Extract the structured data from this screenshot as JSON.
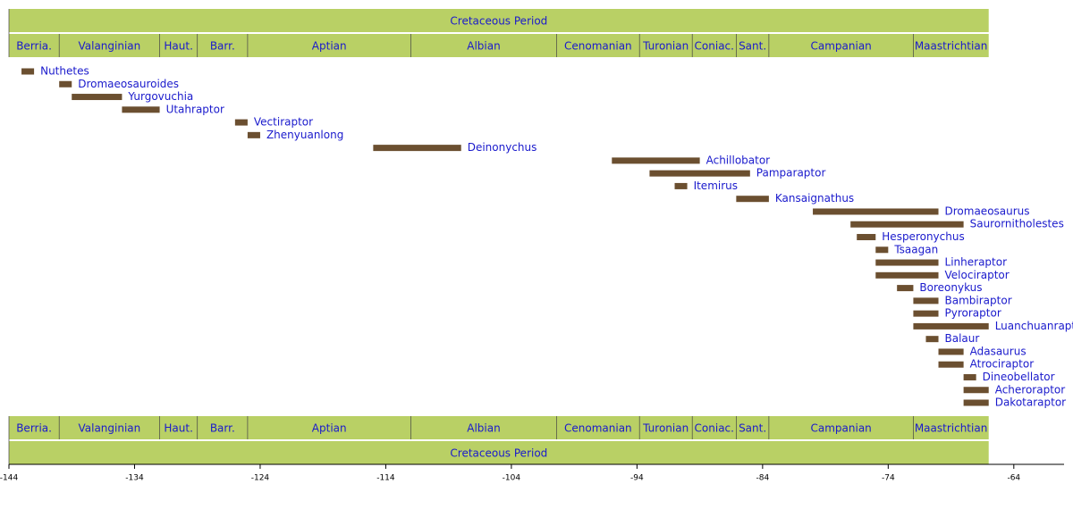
{
  "chart_data": {
    "type": "timeline",
    "xlim": [
      -144,
      -60
    ],
    "xticks": [
      -144,
      -134,
      -124,
      -114,
      -104,
      -94,
      -84,
      -74,
      -64
    ],
    "band_color": "#b9d065",
    "band_text_color": "#1a1acc",
    "bar_color": "#6b4f30",
    "label_color": "#1a1acc",
    "periods": [
      {
        "name": "Cretaceous Period",
        "start": -144,
        "end": -66
      }
    ],
    "stages": [
      {
        "name": "Berria.",
        "start": -144,
        "end": -140
      },
      {
        "name": "Valanginian",
        "start": -140,
        "end": -132
      },
      {
        "name": "Haut.",
        "start": -132,
        "end": -129
      },
      {
        "name": "Barr.",
        "start": -129,
        "end": -125
      },
      {
        "name": "Aptian",
        "start": -125,
        "end": -112
      },
      {
        "name": "Albian",
        "start": -112,
        "end": -100.4
      },
      {
        "name": "Cenomanian",
        "start": -100.4,
        "end": -93.8
      },
      {
        "name": "Turonian",
        "start": -93.8,
        "end": -89.6
      },
      {
        "name": "Coniac.",
        "start": -89.6,
        "end": -86.1
      },
      {
        "name": "Sant.",
        "start": -86.1,
        "end": -83.5
      },
      {
        "name": "Campanian",
        "start": -83.5,
        "end": -72
      },
      {
        "name": "Maastrichtian",
        "start": -72,
        "end": -66
      }
    ],
    "items": [
      {
        "name": "Nuthetes",
        "start": -143,
        "end": -142
      },
      {
        "name": "Dromaeosauroides",
        "start": -140,
        "end": -139
      },
      {
        "name": "Yurgovuchia",
        "start": -139,
        "end": -135
      },
      {
        "name": "Utahraptor",
        "start": -135,
        "end": -132
      },
      {
        "name": "Vectiraptor",
        "start": -126,
        "end": -125
      },
      {
        "name": "Zhenyuanlong",
        "start": -125,
        "end": -124
      },
      {
        "name": "Deinonychus",
        "start": -115,
        "end": -108
      },
      {
        "name": "Achillobator",
        "start": -96,
        "end": -89
      },
      {
        "name": "Pamparaptor",
        "start": -93,
        "end": -85
      },
      {
        "name": "Itemirus",
        "start": -91,
        "end": -90
      },
      {
        "name": "Kansaignathus",
        "start": -86.1,
        "end": -83.5
      },
      {
        "name": "Dromaeosaurus",
        "start": -80,
        "end": -70
      },
      {
        "name": "Saurornitholestes",
        "start": -77,
        "end": -68
      },
      {
        "name": "Hesperonychus",
        "start": -76.5,
        "end": -75
      },
      {
        "name": "Tsaagan",
        "start": -75,
        "end": -74
      },
      {
        "name": "Linheraptor",
        "start": -75,
        "end": -70
      },
      {
        "name": "Velociraptor",
        "start": -75,
        "end": -70
      },
      {
        "name": "Boreonykus",
        "start": -73.3,
        "end": -72
      },
      {
        "name": "Bambiraptor",
        "start": -72,
        "end": -70
      },
      {
        "name": "Pyroraptor",
        "start": -72,
        "end": -70
      },
      {
        "name": "Luanchuanraptor",
        "start": -72,
        "end": -66
      },
      {
        "name": "Balaur",
        "start": -71,
        "end": -70
      },
      {
        "name": "Adasaurus",
        "start": -70,
        "end": -68
      },
      {
        "name": "Atrociraptor",
        "start": -70,
        "end": -68
      },
      {
        "name": "Dineobellator",
        "start": -68,
        "end": -67
      },
      {
        "name": "Acheroraptor",
        "start": -68,
        "end": -66
      },
      {
        "name": "Dakotaraptor",
        "start": -68,
        "end": -66
      }
    ]
  }
}
